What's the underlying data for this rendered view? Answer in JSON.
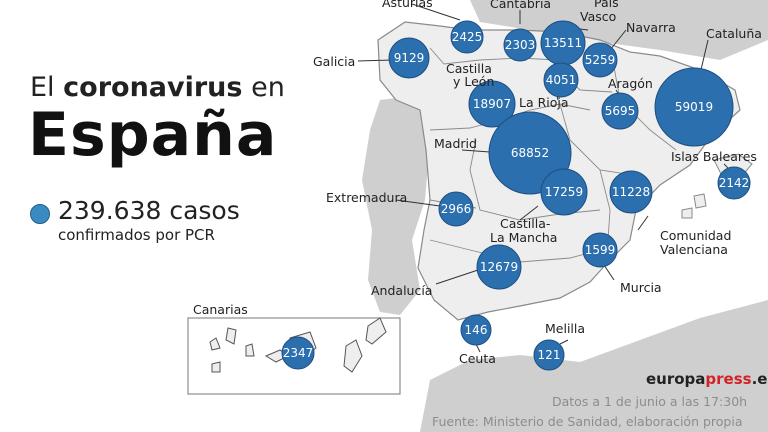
{
  "title": {
    "line1_pre": "El",
    "line1_bold": "coronavirus",
    "line1_post": "en",
    "line2": "España"
  },
  "summary": {
    "cases": "239.638 casos",
    "sub": "confirmados por PCR"
  },
  "regions": {
    "asturias": "Asturias",
    "cantabria": "Cantabria",
    "pais_vasco_line1": "País",
    "pais_vasco_line2": "Vasco",
    "navarra": "Navarra",
    "cataluna": "Cataluña",
    "galicia": "Galicia",
    "castilla_leon_line1": "Castilla",
    "castilla_leon_line2": "y León",
    "la_rioja": "La Rioja",
    "aragon": "Aragón",
    "madrid": "Madrid",
    "islas_baleares": "Islas Baleares",
    "extremadura": "Extremadura",
    "castilla_mancha_line1": "Castilla-",
    "castilla_mancha_line2": "La Mancha",
    "comunidad_valenciana_line1": "Comunidad",
    "comunidad_valenciana_line2": "Valenciana",
    "andalucia": "Andalucía",
    "murcia": "Murcia",
    "canarias": "Canarias",
    "melilla": "Melilla",
    "ceuta": "Ceuta"
  },
  "cases_by_region": [
    {
      "region": "Galicia",
      "value": 9129
    },
    {
      "region": "Asturias",
      "value": 2425
    },
    {
      "region": "Cantabria",
      "value": 2303
    },
    {
      "region": "País Vasco",
      "value": 13511
    },
    {
      "region": "Navarra",
      "value": 5259
    },
    {
      "region": "La Rioja",
      "value": 4051
    },
    {
      "region": "Cataluña",
      "value": 59019
    },
    {
      "region": "Castilla y León",
      "value": 18907
    },
    {
      "region": "Aragón",
      "value": 5695
    },
    {
      "region": "Madrid",
      "value": 68852
    },
    {
      "region": "Castilla-La Mancha",
      "value": 17259
    },
    {
      "region": "Comunidad Valenciana",
      "value": 11228
    },
    {
      "region": "Islas Baleares",
      "value": 2142
    },
    {
      "region": "Extremadura",
      "value": 2966
    },
    {
      "region": "Andalucía",
      "value": 12679
    },
    {
      "region": "Murcia",
      "value": 1599
    },
    {
      "region": "Ceuta",
      "value": 146
    },
    {
      "region": "Melilla",
      "value": 121
    },
    {
      "region": "Canarias",
      "value": 2347
    }
  ],
  "colors": {
    "bubble": "#2b6fae",
    "bubble_stroke": "#1d4f80",
    "land": "#eeeeee",
    "neighbor": "#cfcfcf",
    "border": "#8a8a8a",
    "accent_dot": "#3a8cc0",
    "brand_red": "#d2232a"
  },
  "source": {
    "date": "Datos a 1 de junio a las 17:30h",
    "text": "Fuente: Ministerio de Sanidad, elaboración propia"
  },
  "brand": {
    "part1": "europa",
    "part2": "press",
    "part3": ".es"
  }
}
